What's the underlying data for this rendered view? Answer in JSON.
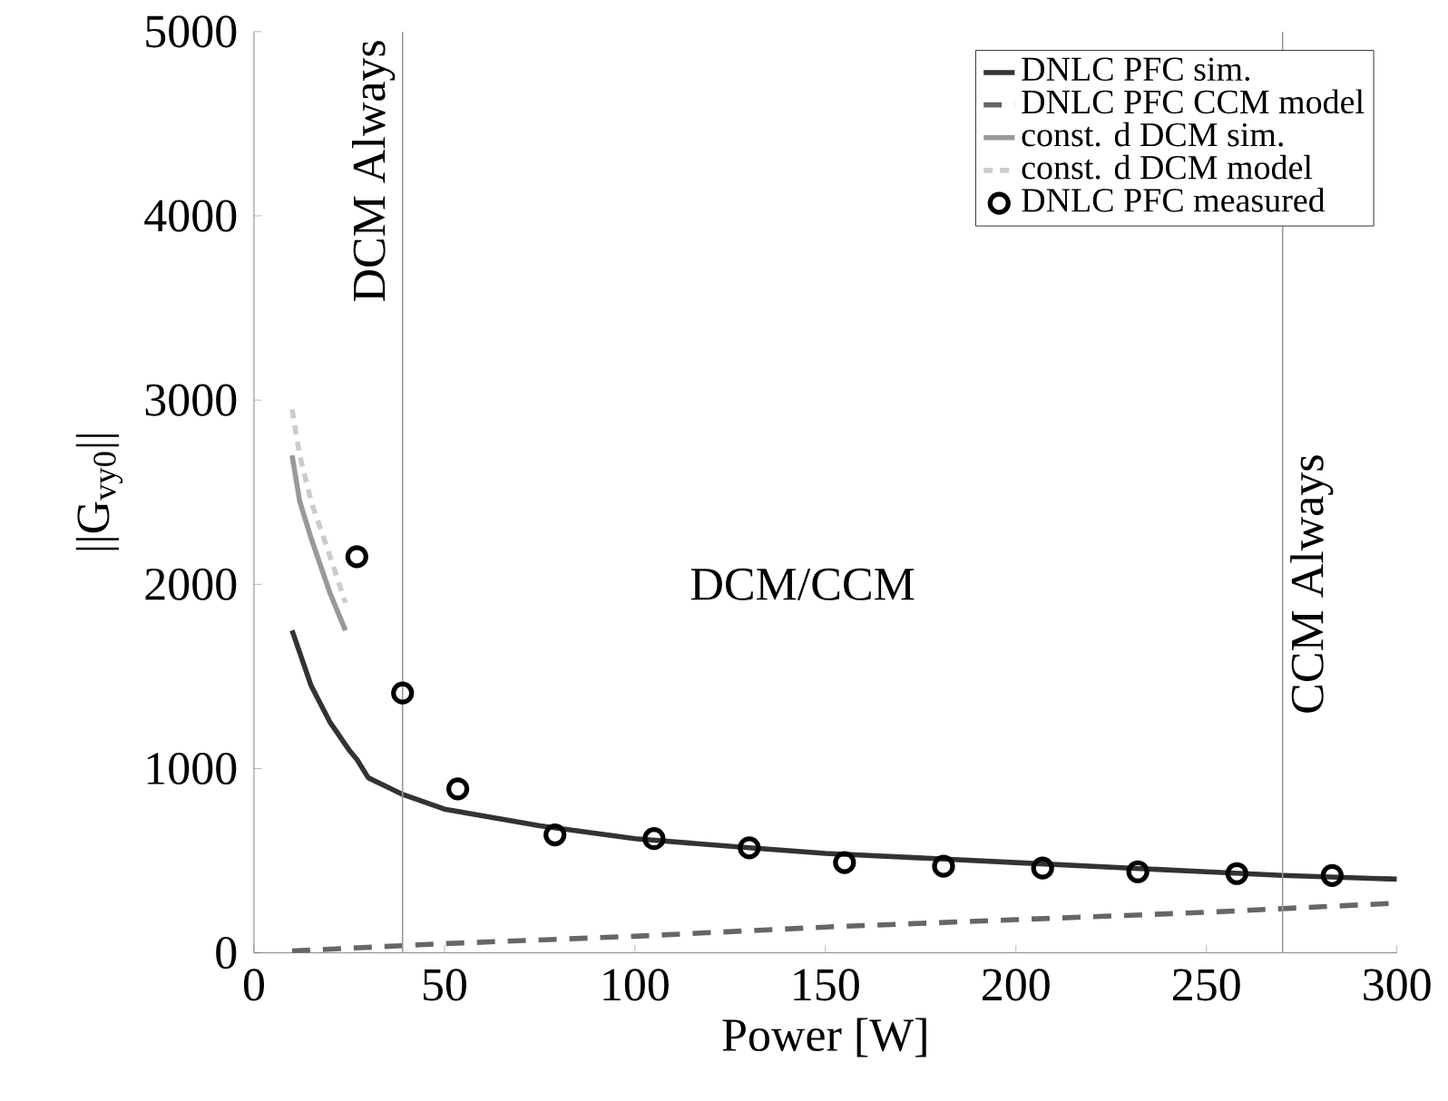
{
  "chart_data": {
    "type": "line",
    "xlabel": "Power [W]",
    "ylabel": "||G$_{vy0}$||",
    "xlim": [
      0,
      300
    ],
    "ylim": [
      0,
      5000
    ],
    "xticks": [
      0,
      50,
      100,
      150,
      200,
      250,
      300
    ],
    "yticks": [
      0,
      1000,
      2000,
      3000,
      4000,
      5000
    ],
    "grid": false,
    "legend": "top right",
    "series": [
      {
        "name": "DNLC PFC sim.",
        "color": "#333333",
        "line_style": "solid",
        "x": [
          10,
          15,
          20,
          25,
          27,
          30,
          35,
          39,
          50,
          75,
          100,
          130,
          150,
          200,
          250,
          270,
          300
        ],
        "values": [
          1750,
          1450,
          1250,
          1100,
          1050,
          950,
          900,
          860,
          780,
          690,
          620,
          570,
          540,
          490,
          440,
          420,
          400
        ]
      },
      {
        "name": "DNLC PFC CCM model",
        "color": "#666666",
        "line_style": "dashed",
        "x": [
          10,
          50,
          100,
          150,
          200,
          250,
          300
        ],
        "values": [
          10,
          50,
          90,
          140,
          180,
          220,
          270
        ]
      },
      {
        "name": "const. d DCM sim.",
        "color": "#999999",
        "line_style": "solid",
        "x": [
          10,
          12,
          15,
          20,
          24
        ],
        "values": [
          2700,
          2450,
          2250,
          1950,
          1750
        ]
      },
      {
        "name": "const. d DCM model",
        "color": "#cccccc",
        "line_style": "dotted",
        "x": [
          10,
          12,
          15,
          20,
          24
        ],
        "values": [
          2950,
          2700,
          2450,
          2150,
          1900
        ]
      },
      {
        "name": "DNLC PFC measured",
        "type": "scatter",
        "color": "#000000",
        "marker": "circle",
        "x": [
          27,
          39,
          53.5,
          79,
          105,
          130,
          155,
          181,
          207,
          232,
          258,
          283
        ],
        "values": [
          2150,
          1410,
          890,
          640,
          620,
          570,
          490,
          470,
          460,
          440,
          430,
          420
        ]
      }
    ],
    "ref_lines": [
      {
        "axis": "x",
        "value": 39,
        "label": "DCM Always",
        "color": "#999999"
      },
      {
        "axis": "x",
        "value": 270,
        "label": "CCM Always",
        "color": "#999999"
      }
    ],
    "annotations": [
      "DCM/CCM"
    ]
  }
}
